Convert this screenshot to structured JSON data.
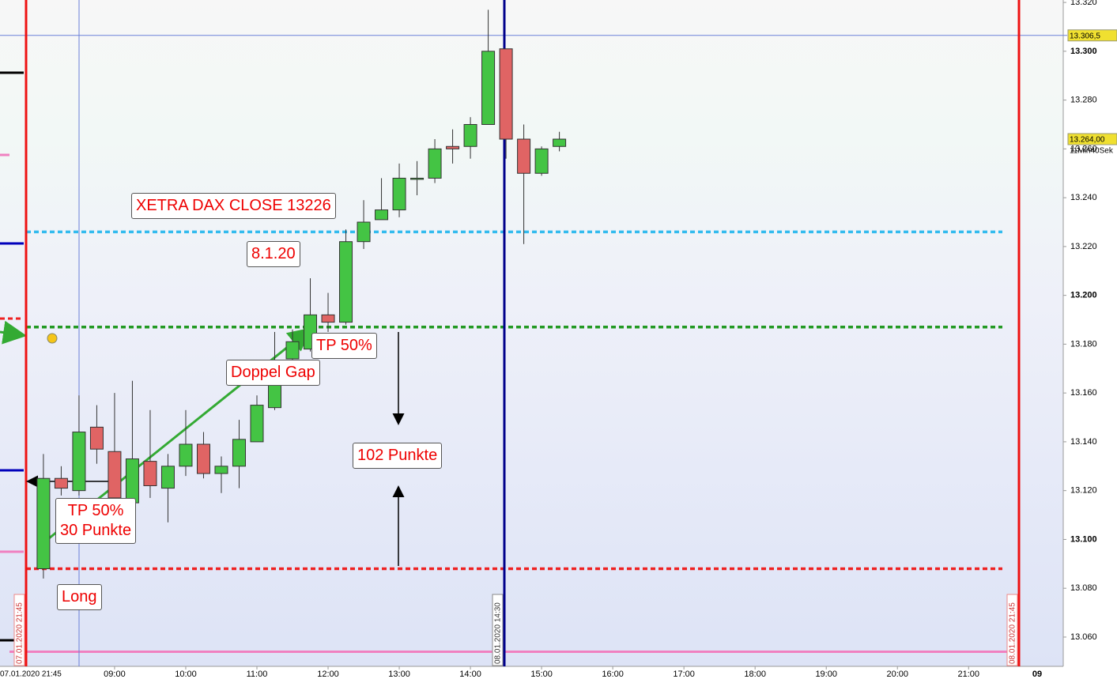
{
  "chart_data": {
    "type": "candlestick",
    "x": [
      "08:00",
      "08:15",
      "08:30",
      "08:45",
      "09:00",
      "09:15",
      "09:30",
      "09:45",
      "10:00",
      "10:15",
      "10:30",
      "10:45",
      "11:00",
      "11:15",
      "11:30",
      "11:45",
      "12:00",
      "12:15",
      "12:30",
      "12:45",
      "13:00",
      "13:15",
      "13:30",
      "13:45",
      "14:00",
      "14:15",
      "14:30",
      "14:45",
      "15:00",
      "15:15"
    ],
    "open": [
      13088,
      13125,
      13120,
      13146,
      13136,
      13115,
      13132,
      13121,
      13130,
      13139,
      13127,
      13130,
      13140,
      13154,
      13174,
      13178,
      13192,
      13189,
      13222,
      13231,
      13235,
      13248,
      13248,
      13261,
      13261,
      13270,
      13301,
      13264,
      13250,
      13261
    ],
    "high": [
      13135,
      13130,
      13159,
      13155,
      13160,
      13165,
      13153,
      13135,
      13153,
      13144,
      13134,
      13149,
      13159,
      13185,
      13186,
      13207,
      13201,
      13227,
      13239,
      13248,
      13254,
      13255,
      13264,
      13268,
      13273,
      13317,
      13301,
      13270,
      13261,
      13267
    ],
    "low": [
      13084,
      13118,
      13118,
      13131,
      13114,
      13113,
      13117,
      13107,
      13126,
      13125,
      13119,
      13121,
      13140,
      13153,
      13172,
      13177,
      13185,
      13188,
      13219,
      13231,
      13232,
      13241,
      13246,
      13254,
      13256,
      13270,
      13256,
      13221,
      13249,
      13259
    ],
    "close": [
      13125,
      13121,
      13144,
      13137,
      13117,
      13133,
      13122,
      13130,
      13139,
      13127,
      13130,
      13141,
      13155,
      13171,
      13181,
      13192,
      13189,
      13222,
      13230,
      13235,
      13248,
      13248,
      13260,
      13260,
      13270,
      13300,
      13264,
      13250,
      13260,
      13264
    ],
    "up_color": "#44c444",
    "down_color": "#e06464",
    "ylim": [
      13048,
      13321
    ],
    "yticks": [
      {
        "value": 13060,
        "label": "13.060"
      },
      {
        "value": 13080,
        "label": "13.080"
      },
      {
        "value": 13100,
        "label": "13.100"
      },
      {
        "value": 13120,
        "label": "13.120"
      },
      {
        "value": 13140,
        "label": "13.140"
      },
      {
        "value": 13160,
        "label": "13.160"
      },
      {
        "value": 13180,
        "label": "13.180"
      },
      {
        "value": 13200,
        "label": "13.200"
      },
      {
        "value": 13220,
        "label": "13.220"
      },
      {
        "value": 13240,
        "label": "13.240"
      },
      {
        "value": 13260,
        "label": "13.260"
      },
      {
        "value": 13280,
        "label": "13.280"
      },
      {
        "value": 13300,
        "label": "13.300"
      },
      {
        "value": 13320,
        "label": "13.320"
      }
    ],
    "xlim": [
      7.39,
      22.33
    ],
    "xticks": [
      "09:00",
      "10:00",
      "11:00",
      "12:00",
      "13:00",
      "14:00",
      "15:00",
      "16:00",
      "17:00",
      "18:00",
      "19:00",
      "20:00",
      "21:00"
    ],
    "day_label": "09",
    "start_label": "07.01.2020 21:45",
    "hlines": [
      {
        "value": 13226,
        "color": "#33bbee",
        "style": "dotted"
      },
      {
        "value": 13187,
        "color": "#229922",
        "style": "dotted"
      },
      {
        "value": 13088,
        "color": "#ee2222",
        "style": "dotted"
      },
      {
        "value": 13054,
        "color": "#f080c0",
        "style": "solid"
      },
      {
        "value": 13306.5,
        "color": "#6a7fd8",
        "style": "thin"
      }
    ],
    "price_markers": [
      {
        "value": 13306.5,
        "label": "13.306,5"
      },
      {
        "value": 13264,
        "label": "13.264,00"
      }
    ],
    "countdown": "11Min40Sek",
    "session_lines": [
      "07.01.2020 21:45",
      "08.01.2020 14:30",
      "08.01.2020 21:45"
    ],
    "annotations": [
      "XETRA DAX CLOSE 13226",
      "8.1.20",
      "TP 50%",
      "Doppel Gap",
      "102 Punkte",
      "TP 50%",
      "30 Punkte",
      "Long"
    ]
  }
}
